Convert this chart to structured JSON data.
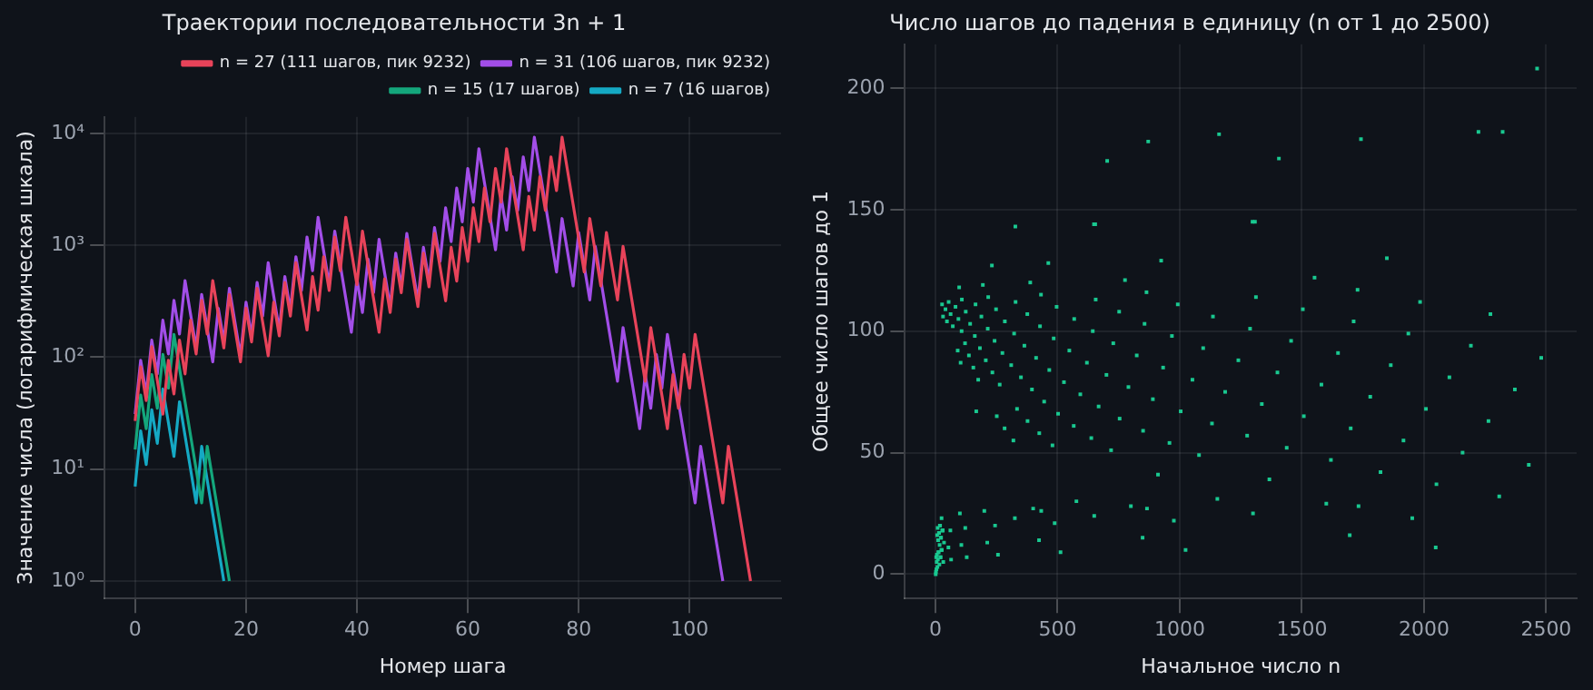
{
  "chart_data": [
    {
      "type": "line",
      "title": "Траектории последовательности 3n + 1",
      "xlabel": "Номер шага",
      "ylabel": "Значение числа (логарифмическая шкала)",
      "log": "y",
      "grid": true,
      "legend": "top right",
      "x": [
        0,
        1,
        2,
        3,
        4,
        5,
        6,
        7,
        8,
        9,
        10,
        11,
        12,
        13,
        14,
        15,
        16,
        17,
        18,
        19,
        20,
        21,
        22,
        23,
        24,
        25,
        26,
        27,
        28,
        29,
        30,
        31,
        32,
        33,
        34,
        35,
        36,
        37,
        38,
        39,
        40,
        41,
        42,
        43,
        44,
        45,
        46,
        47,
        48,
        49,
        50,
        51,
        52,
        53,
        54,
        55,
        56,
        57,
        58,
        59,
        60,
        61,
        62,
        63,
        64,
        65,
        66,
        67,
        68,
        69,
        70,
        71,
        72,
        73,
        74,
        75,
        76,
        77,
        78,
        79,
        80,
        81,
        82,
        83,
        84,
        85,
        86,
        87,
        88,
        89,
        90,
        91,
        92,
        93,
        94,
        95,
        96,
        97,
        98,
        99,
        100,
        101,
        102,
        103,
        104,
        105,
        106,
        107,
        108,
        109,
        110,
        111
      ],
      "xlim": [
        -5.5,
        116.5
      ],
      "xticks": [
        0,
        20,
        40,
        60,
        80,
        100
      ],
      "ylim": [
        0.7,
        14000
      ],
      "yticks": [
        {
          "value": 1,
          "label": "10⁰"
        },
        {
          "value": 10,
          "label": "10¹"
        },
        {
          "value": 100,
          "label": "10²"
        },
        {
          "value": 1000,
          "label": "10³"
        },
        {
          "value": 10000,
          "label": "10⁴"
        }
      ],
      "series": [
        {
          "name": "n = 27 (111 шагов, пик 9232)",
          "color": "#e8435a",
          "values": [
            27,
            82,
            41,
            124,
            62,
            31,
            94,
            47,
            142,
            71,
            214,
            107,
            322,
            161,
            484,
            242,
            121,
            364,
            182,
            91,
            274,
            137,
            412,
            206,
            103,
            310,
            155,
            466,
            233,
            700,
            350,
            175,
            526,
            263,
            790,
            395,
            1186,
            593,
            1780,
            890,
            445,
            1336,
            668,
            334,
            167,
            502,
            251,
            754,
            377,
            1132,
            566,
            283,
            850,
            425,
            1276,
            638,
            319,
            958,
            479,
            1438,
            719,
            2158,
            1079,
            3238,
            1619,
            4858,
            2429,
            7288,
            3644,
            1822,
            911,
            2734,
            1367,
            4102,
            2051,
            6154,
            3077,
            9232,
            4616,
            2308,
            1154,
            577,
            1732,
            866,
            433,
            1300,
            650,
            325,
            976,
            488,
            244,
            122,
            61,
            184,
            92,
            46,
            23,
            70,
            35,
            106,
            53,
            160,
            80,
            40,
            20,
            10,
            5,
            16,
            8,
            4,
            2,
            1
          ]
        },
        {
          "name": "n = 31 (106 шагов, пик 9232)",
          "color": "#a24ee8",
          "x": [
            0,
            1,
            2,
            3,
            4,
            5,
            6,
            7,
            8,
            9,
            10,
            11,
            12,
            13,
            14,
            15,
            16,
            17,
            18,
            19,
            20,
            21,
            22,
            23,
            24,
            25,
            26,
            27,
            28,
            29,
            30,
            31,
            32,
            33,
            34,
            35,
            36,
            37,
            38,
            39,
            40,
            41,
            42,
            43,
            44,
            45,
            46,
            47,
            48,
            49,
            50,
            51,
            52,
            53,
            54,
            55,
            56,
            57,
            58,
            59,
            60,
            61,
            62,
            63,
            64,
            65,
            66,
            67,
            68,
            69,
            70,
            71,
            72,
            73,
            74,
            75,
            76,
            77,
            78,
            79,
            80,
            81,
            82,
            83,
            84,
            85,
            86,
            87,
            88,
            89,
            90,
            91,
            92,
            93,
            94,
            95,
            96,
            97,
            98,
            99,
            100,
            101,
            102,
            103,
            104,
            105,
            106
          ],
          "values": [
            31,
            94,
            47,
            142,
            71,
            214,
            107,
            322,
            161,
            484,
            242,
            121,
            364,
            182,
            91,
            274,
            137,
            412,
            206,
            103,
            310,
            155,
            466,
            233,
            700,
            350,
            175,
            526,
            263,
            790,
            395,
            1186,
            593,
            1780,
            890,
            445,
            1336,
            668,
            334,
            167,
            502,
            251,
            754,
            377,
            1132,
            566,
            283,
            850,
            425,
            1276,
            638,
            319,
            958,
            479,
            1438,
            719,
            2158,
            1079,
            3238,
            1619,
            4858,
            2429,
            7288,
            3644,
            1822,
            911,
            2734,
            1367,
            4102,
            2051,
            6154,
            3077,
            9232,
            4616,
            2308,
            1154,
            577,
            1732,
            866,
            433,
            1300,
            650,
            325,
            976,
            488,
            244,
            122,
            61,
            184,
            92,
            46,
            23,
            70,
            35,
            106,
            53,
            160,
            80,
            40,
            20,
            10,
            5,
            16,
            8,
            4,
            2,
            1
          ]
        },
        {
          "name": "n = 15 (17 шагов)",
          "color": "#14a77c",
          "x": [
            0,
            1,
            2,
            3,
            4,
            5,
            6,
            7,
            8,
            9,
            10,
            11,
            12,
            13,
            14,
            15,
            16,
            17
          ],
          "values": [
            15,
            46,
            23,
            70,
            35,
            106,
            53,
            160,
            80,
            40,
            20,
            10,
            5,
            16,
            8,
            4,
            2,
            1
          ]
        },
        {
          "name": "n = 7 (16 шагов)",
          "color": "#15a9c4",
          "x": [
            0,
            1,
            2,
            3,
            4,
            5,
            6,
            7,
            8,
            9,
            10,
            11,
            12,
            13,
            14,
            15,
            16
          ],
          "values": [
            7,
            22,
            11,
            34,
            17,
            52,
            26,
            13,
            40,
            20,
            10,
            5,
            16,
            8,
            4,
            2,
            1
          ]
        }
      ]
    },
    {
      "type": "scatter",
      "title": "Число шагов до падения в единицу (n от 1 до 2500)",
      "xlabel": "Начальное число n",
      "ylabel": "Общее число шагов до 1",
      "grid": true,
      "marker": "square",
      "xlim": [
        -125,
        2625
      ],
      "xticks": [
        0,
        500,
        1000,
        1500,
        2000,
        2500
      ],
      "ylim": [
        -10,
        218
      ],
      "yticks": [
        0,
        50,
        100,
        150,
        200
      ],
      "series": [
        {
          "color": "#19c890",
          "x": [
            1,
            2,
            3,
            4,
            5,
            6,
            7,
            8,
            9,
            10,
            11,
            12,
            13,
            14,
            15,
            16,
            17,
            18,
            19,
            20,
            21,
            22,
            23,
            24,
            25,
            26,
            27,
            28,
            29,
            30,
            31,
            32,
            35,
            41,
            47,
            53,
            54,
            61,
            62,
            64,
            71,
            82,
            91,
            94,
            97,
            100,
            103,
            106,
            107,
            108,
            121,
            122,
            124,
            128,
            137,
            142,
            155,
            161,
            164,
            167,
            175,
            182,
            188,
            194,
            200,
            206,
            212,
            214,
            216,
            231,
            233,
            242,
            244,
            248,
            251,
            256,
            263,
            274,
            283,
            284,
            310,
            319,
            322,
            325,
            327,
            328,
            334,
            350,
            364,
            376,
            377,
            388,
            395,
            400,
            412,
            424,
            425,
            428,
            432,
            433,
            445,
            462,
            466,
            479,
            484,
            488,
            496,
            502,
            512,
            526,
            548,
            566,
            568,
            577,
            593,
            620,
            638,
            644,
            649,
            650,
            654,
            656,
            668,
            700,
            703,
            719,
            728,
            752,
            754,
            776,
            790,
            800,
            824,
            848,
            850,
            856,
            864,
            866,
            871,
            890,
            911,
            924,
            932,
            958,
            968,
            976,
            992,
            1004,
            1024,
            1052,
            1079,
            1096,
            1132,
            1136,
            1154,
            1161,
            1186,
            1240,
            1276,
            1288,
            1298,
            1300,
            1308,
            1312,
            1336,
            1367,
            1400,
            1406,
            1438,
            1456,
            1504,
            1508,
            1552,
            1580,
            1600,
            1619,
            1648,
            1696,
            1700,
            1712,
            1728,
            1732,
            1742,
            1780,
            1822,
            1848,
            1864,
            1916,
            1936,
            1952,
            1984,
            2008,
            2048,
            2051,
            2104,
            2158,
            2192,
            2223,
            2264,
            2272,
            2308,
            2322,
            2372,
            2429,
            2463,
            2480
          ],
          "values": [
            0,
            1,
            7,
            2,
            5,
            8,
            16,
            3,
            19,
            6,
            14,
            9,
            9,
            17,
            17,
            4,
            12,
            20,
            20,
            7,
            7,
            15,
            15,
            10,
            23,
            10,
            111,
            18,
            18,
            18,
            106,
            5,
            13,
            109,
            104,
            11,
            112,
            18,
            107,
            6,
            102,
            110,
            92,
            105,
            118,
            25,
            87,
            12,
            100,
            113,
            95,
            19,
            108,
            7,
            90,
            103,
            85,
            98,
            111,
            67,
            80,
            93,
            106,
            119,
            26,
            88,
            13,
            101,
            114,
            127,
            83,
            96,
            20,
            109,
            65,
            8,
            78,
            91,
            60,
            104,
            86,
            55,
            99,
            23,
            143,
            112,
            68,
            81,
            94,
            107,
            63,
            120,
            76,
            27,
            89,
            14,
            58,
            102,
            115,
            26,
            71,
            128,
            84,
            53,
            97,
            21,
            110,
            66,
            9,
            79,
            92,
            61,
            105,
            30,
            74,
            87,
            56,
            100,
            144,
            24,
            144,
            113,
            69,
            82,
            170,
            51,
            95,
            108,
            64,
            121,
            77,
            28,
            90,
            15,
            59,
            103,
            116,
            27,
            178,
            72,
            41,
            129,
            85,
            54,
            98,
            22,
            111,
            67,
            10,
            80,
            49,
            93,
            62,
            106,
            31,
            181,
            75,
            88,
            57,
            101,
            145,
            25,
            145,
            114,
            70,
            39,
            83,
            171,
            52,
            96,
            109,
            65,
            122,
            78,
            29,
            47,
            91,
            16,
            60,
            104,
            117,
            28,
            179,
            73,
            42,
            130,
            86,
            55,
            99,
            23,
            112,
            68,
            11,
            37,
            81,
            50,
            94,
            182,
            63,
            107,
            32,
            182,
            76,
            45,
            208,
            89
          ]
        }
      ]
    }
  ]
}
